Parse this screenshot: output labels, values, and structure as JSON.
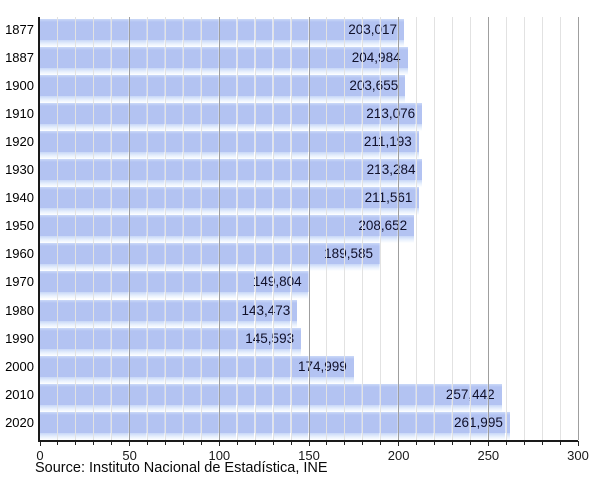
{
  "chart_data": {
    "type": "bar",
    "orientation": "horizontal",
    "title": "",
    "categories": [
      "1877",
      "1887",
      "1900",
      "1910",
      "1920",
      "1930",
      "1940",
      "1950",
      "1960",
      "1970",
      "1980",
      "1990",
      "2000",
      "2010",
      "2020"
    ],
    "values": [
      203017,
      204984,
      203655,
      213076,
      211193,
      213284,
      211561,
      208652,
      189585,
      149804,
      143473,
      145593,
      174999,
      257442,
      261995
    ],
    "value_labels": [
      "203,017",
      "204,984",
      "203,655",
      "213,076",
      "211,193",
      "213,284",
      "211,561",
      "208,652",
      "189,585",
      "149,804",
      "143,473",
      "145,593",
      "174,999",
      "257,442",
      "261,995"
    ],
    "x_axis": {
      "min": 0,
      "max": 300,
      "unit_scale": "thousands",
      "major_step": 50,
      "minor_step": 10,
      "tick_labels": [
        "0",
        "50",
        "100",
        "150",
        "200",
        "250",
        "300"
      ]
    },
    "grid": true,
    "legend_position": "none",
    "source_note": "Source: Instituto Nacional de Estadística, INE",
    "colors": {
      "bar": "#b3c3f2",
      "bar_highlight": "#cbd9f8",
      "minor_grid": "#e2e2e2",
      "major_grid": "#9f9f9f",
      "axis": "#1a1a1a",
      "value_text": "#10102a",
      "label_text": "#000000"
    }
  }
}
